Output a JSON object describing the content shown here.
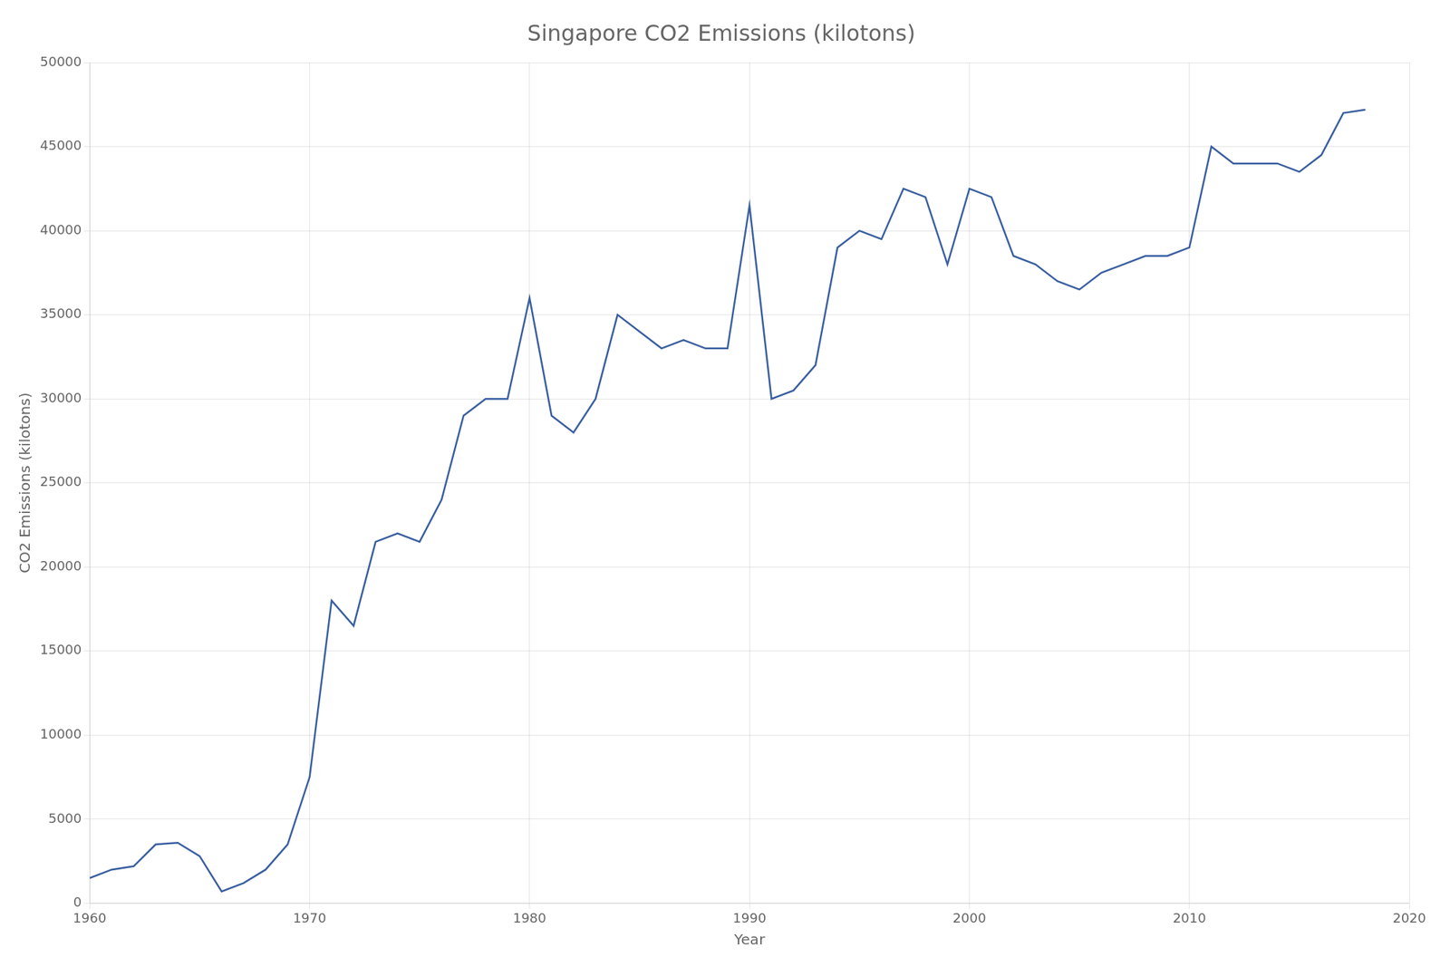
{
  "chart_data": {
    "type": "line",
    "title": "Singapore CO2 Emissions (kilotons)",
    "xlabel": "Year",
    "ylabel": "CO2 Emissions (kilotons)",
    "color": "#3a5fa0",
    "grid": true,
    "xlim": [
      1960,
      2020
    ],
    "ylim": [
      0,
      50000
    ],
    "xticks": [
      1960,
      1970,
      1980,
      1990,
      2000,
      2010,
      2020
    ],
    "yticks": [
      0,
      5000,
      10000,
      15000,
      20000,
      25000,
      30000,
      35000,
      40000,
      45000,
      50000
    ],
    "x": [
      1960,
      1961,
      1962,
      1963,
      1964,
      1965,
      1966,
      1967,
      1968,
      1969,
      1970,
      1971,
      1972,
      1973,
      1974,
      1975,
      1976,
      1977,
      1978,
      1979,
      1980,
      1981,
      1982,
      1983,
      1984,
      1985,
      1986,
      1987,
      1988,
      1989,
      1990,
      1991,
      1992,
      1993,
      1994,
      1995,
      1996,
      1997,
      1998,
      1999,
      2000,
      2001,
      2002,
      2003,
      2004,
      2005,
      2006,
      2007,
      2008,
      2009,
      2010,
      2011,
      2012,
      2013,
      2014,
      2015,
      2016,
      2017,
      2018
    ],
    "values": [
      1500,
      2000,
      2200,
      3500,
      3600,
      2800,
      700,
      1200,
      2000,
      3500,
      7500,
      18000,
      16500,
      21500,
      22000,
      21500,
      24000,
      29000,
      30000,
      30000,
      36000,
      29000,
      28000,
      30000,
      35000,
      34000,
      33000,
      33500,
      33000,
      33000,
      41500,
      30000,
      30500,
      32000,
      39000,
      40000,
      39500,
      42500,
      42000,
      38000,
      42500,
      42000,
      38500,
      38000,
      37000,
      36500,
      37500,
      38000,
      38500,
      38500,
      39000,
      45000,
      44000,
      44000,
      44000,
      43500,
      44500,
      47000,
      47200
    ]
  }
}
